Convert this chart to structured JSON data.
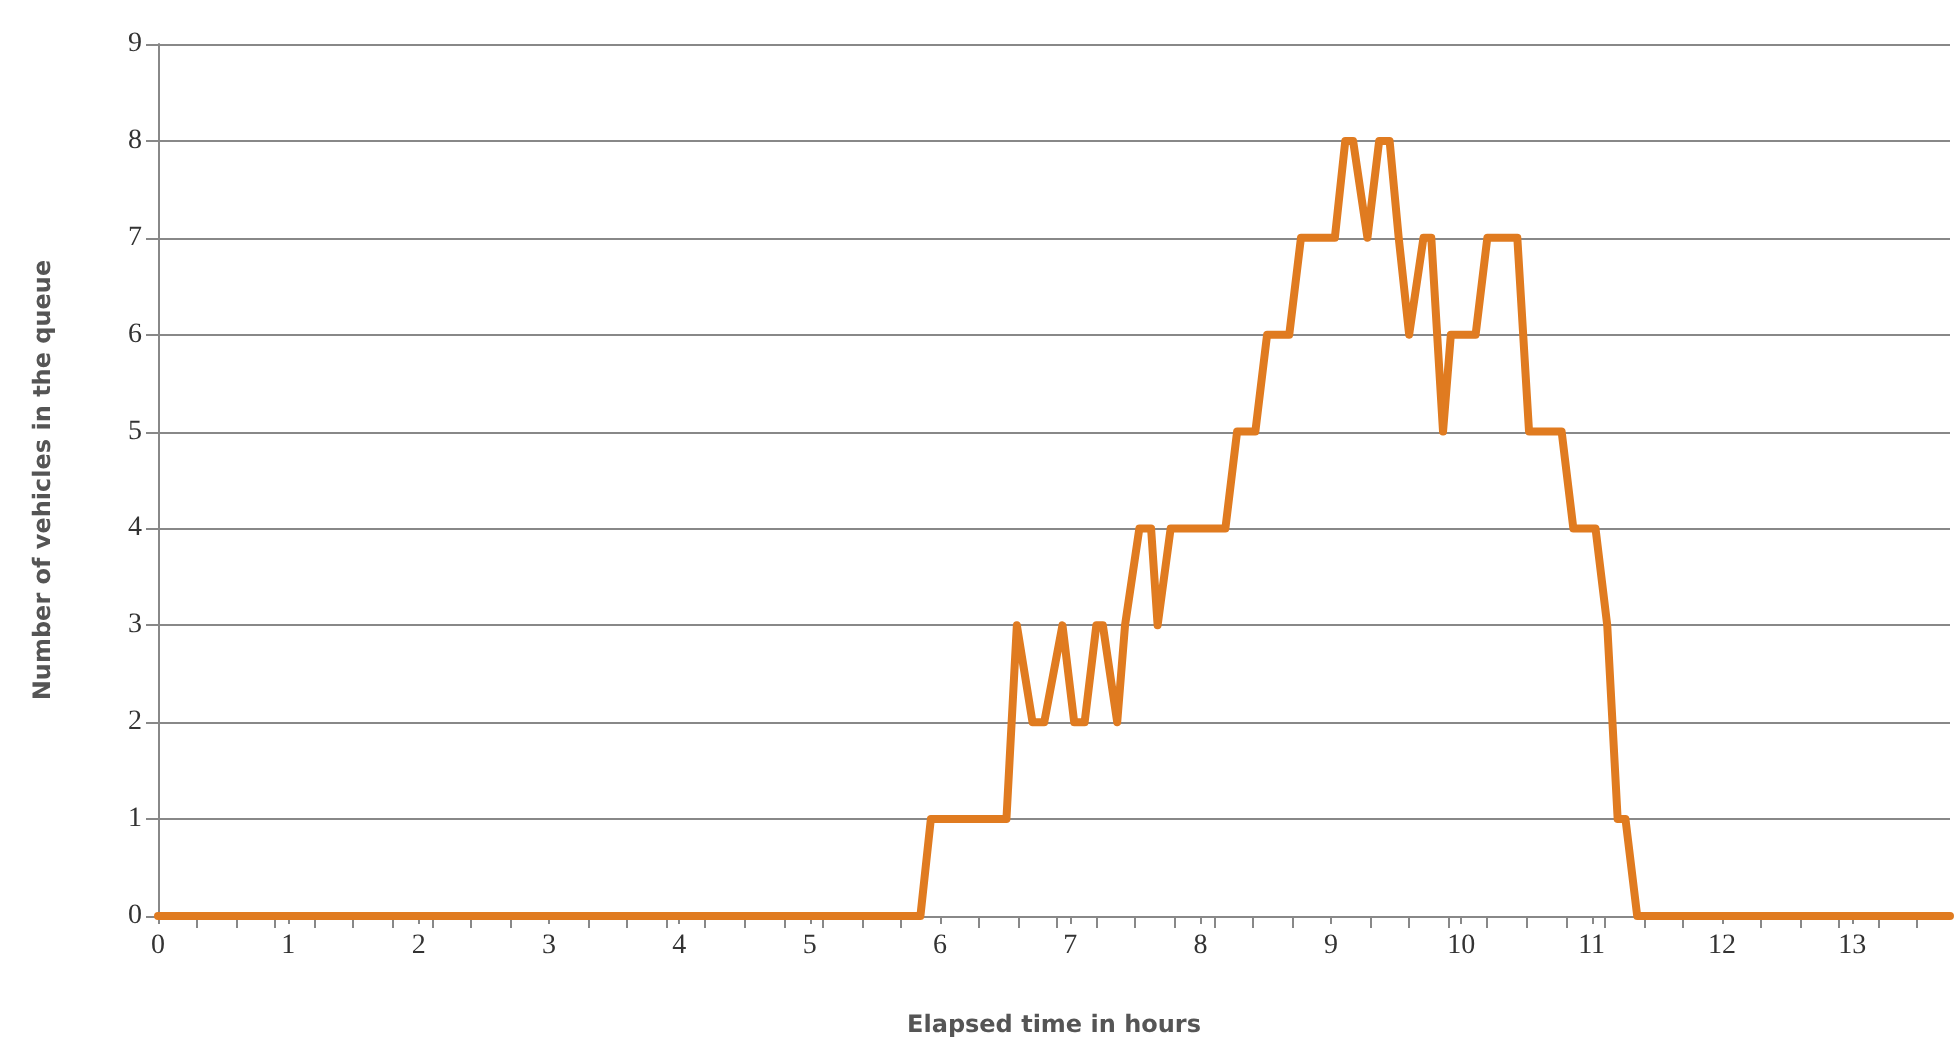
{
  "chart_data": {
    "type": "line",
    "xlabel": "Elapsed time in hours",
    "ylabel": "Number of vehicles in the queue",
    "x": [
      0,
      5.85,
      5.93,
      6.51,
      6.59,
      6.71,
      6.8,
      6.94,
      7.03,
      7.11,
      7.2,
      7.25,
      7.36,
      7.42,
      7.53,
      7.62,
      7.67,
      7.77,
      8.19,
      8.28,
      8.42,
      8.51,
      8.68,
      8.77,
      9.03,
      9.11,
      9.17,
      9.28,
      9.37,
      9.45,
      9.52,
      9.6,
      9.71,
      9.77,
      9.86,
      9.92,
      10.11,
      10.2,
      10.43,
      10.52,
      10.77,
      10.86,
      11.03,
      11.12,
      11.2,
      11.26,
      11.35,
      13.75
    ],
    "series": [
      {
        "color": "#e07b20",
        "values": [
          0,
          0,
          1,
          1,
          3,
          2,
          2,
          3,
          2,
          2,
          3,
          3,
          2,
          3,
          4,
          4,
          3,
          4,
          4,
          5,
          5,
          6,
          6,
          7,
          7,
          8,
          8,
          7,
          8,
          8,
          7,
          6,
          7,
          7,
          5,
          6,
          6,
          7,
          7,
          5,
          5,
          4,
          4,
          3,
          1,
          1,
          0,
          0
        ]
      }
    ],
    "xlim": [
      0,
      13.75
    ],
    "xticks": [
      0,
      1,
      2,
      3,
      4,
      5,
      6,
      7,
      8,
      9,
      10,
      11,
      12,
      13
    ],
    "ylim": [
      0,
      9
    ],
    "yticks": [
      0,
      1,
      2,
      3,
      4,
      5,
      6,
      7,
      8,
      9
    ],
    "grid": "y",
    "marker": "none",
    "line_style": "solid"
  }
}
